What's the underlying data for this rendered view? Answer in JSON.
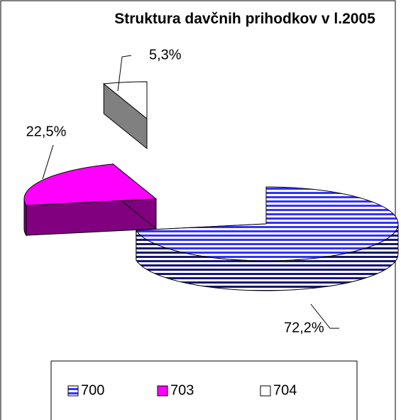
{
  "chart_data": {
    "type": "pie3d",
    "title": "Struktura davčnih prihodkov v l.2005",
    "categories": [
      "700",
      "703",
      "704"
    ],
    "values": [
      72.2,
      22.5,
      5.3
    ],
    "value_labels": [
      "72,2%",
      "22,5%",
      "5,3%"
    ],
    "colors": [
      "#3333ff",
      "#ff00ff",
      "#ffffff"
    ],
    "legend": "bottom"
  }
}
